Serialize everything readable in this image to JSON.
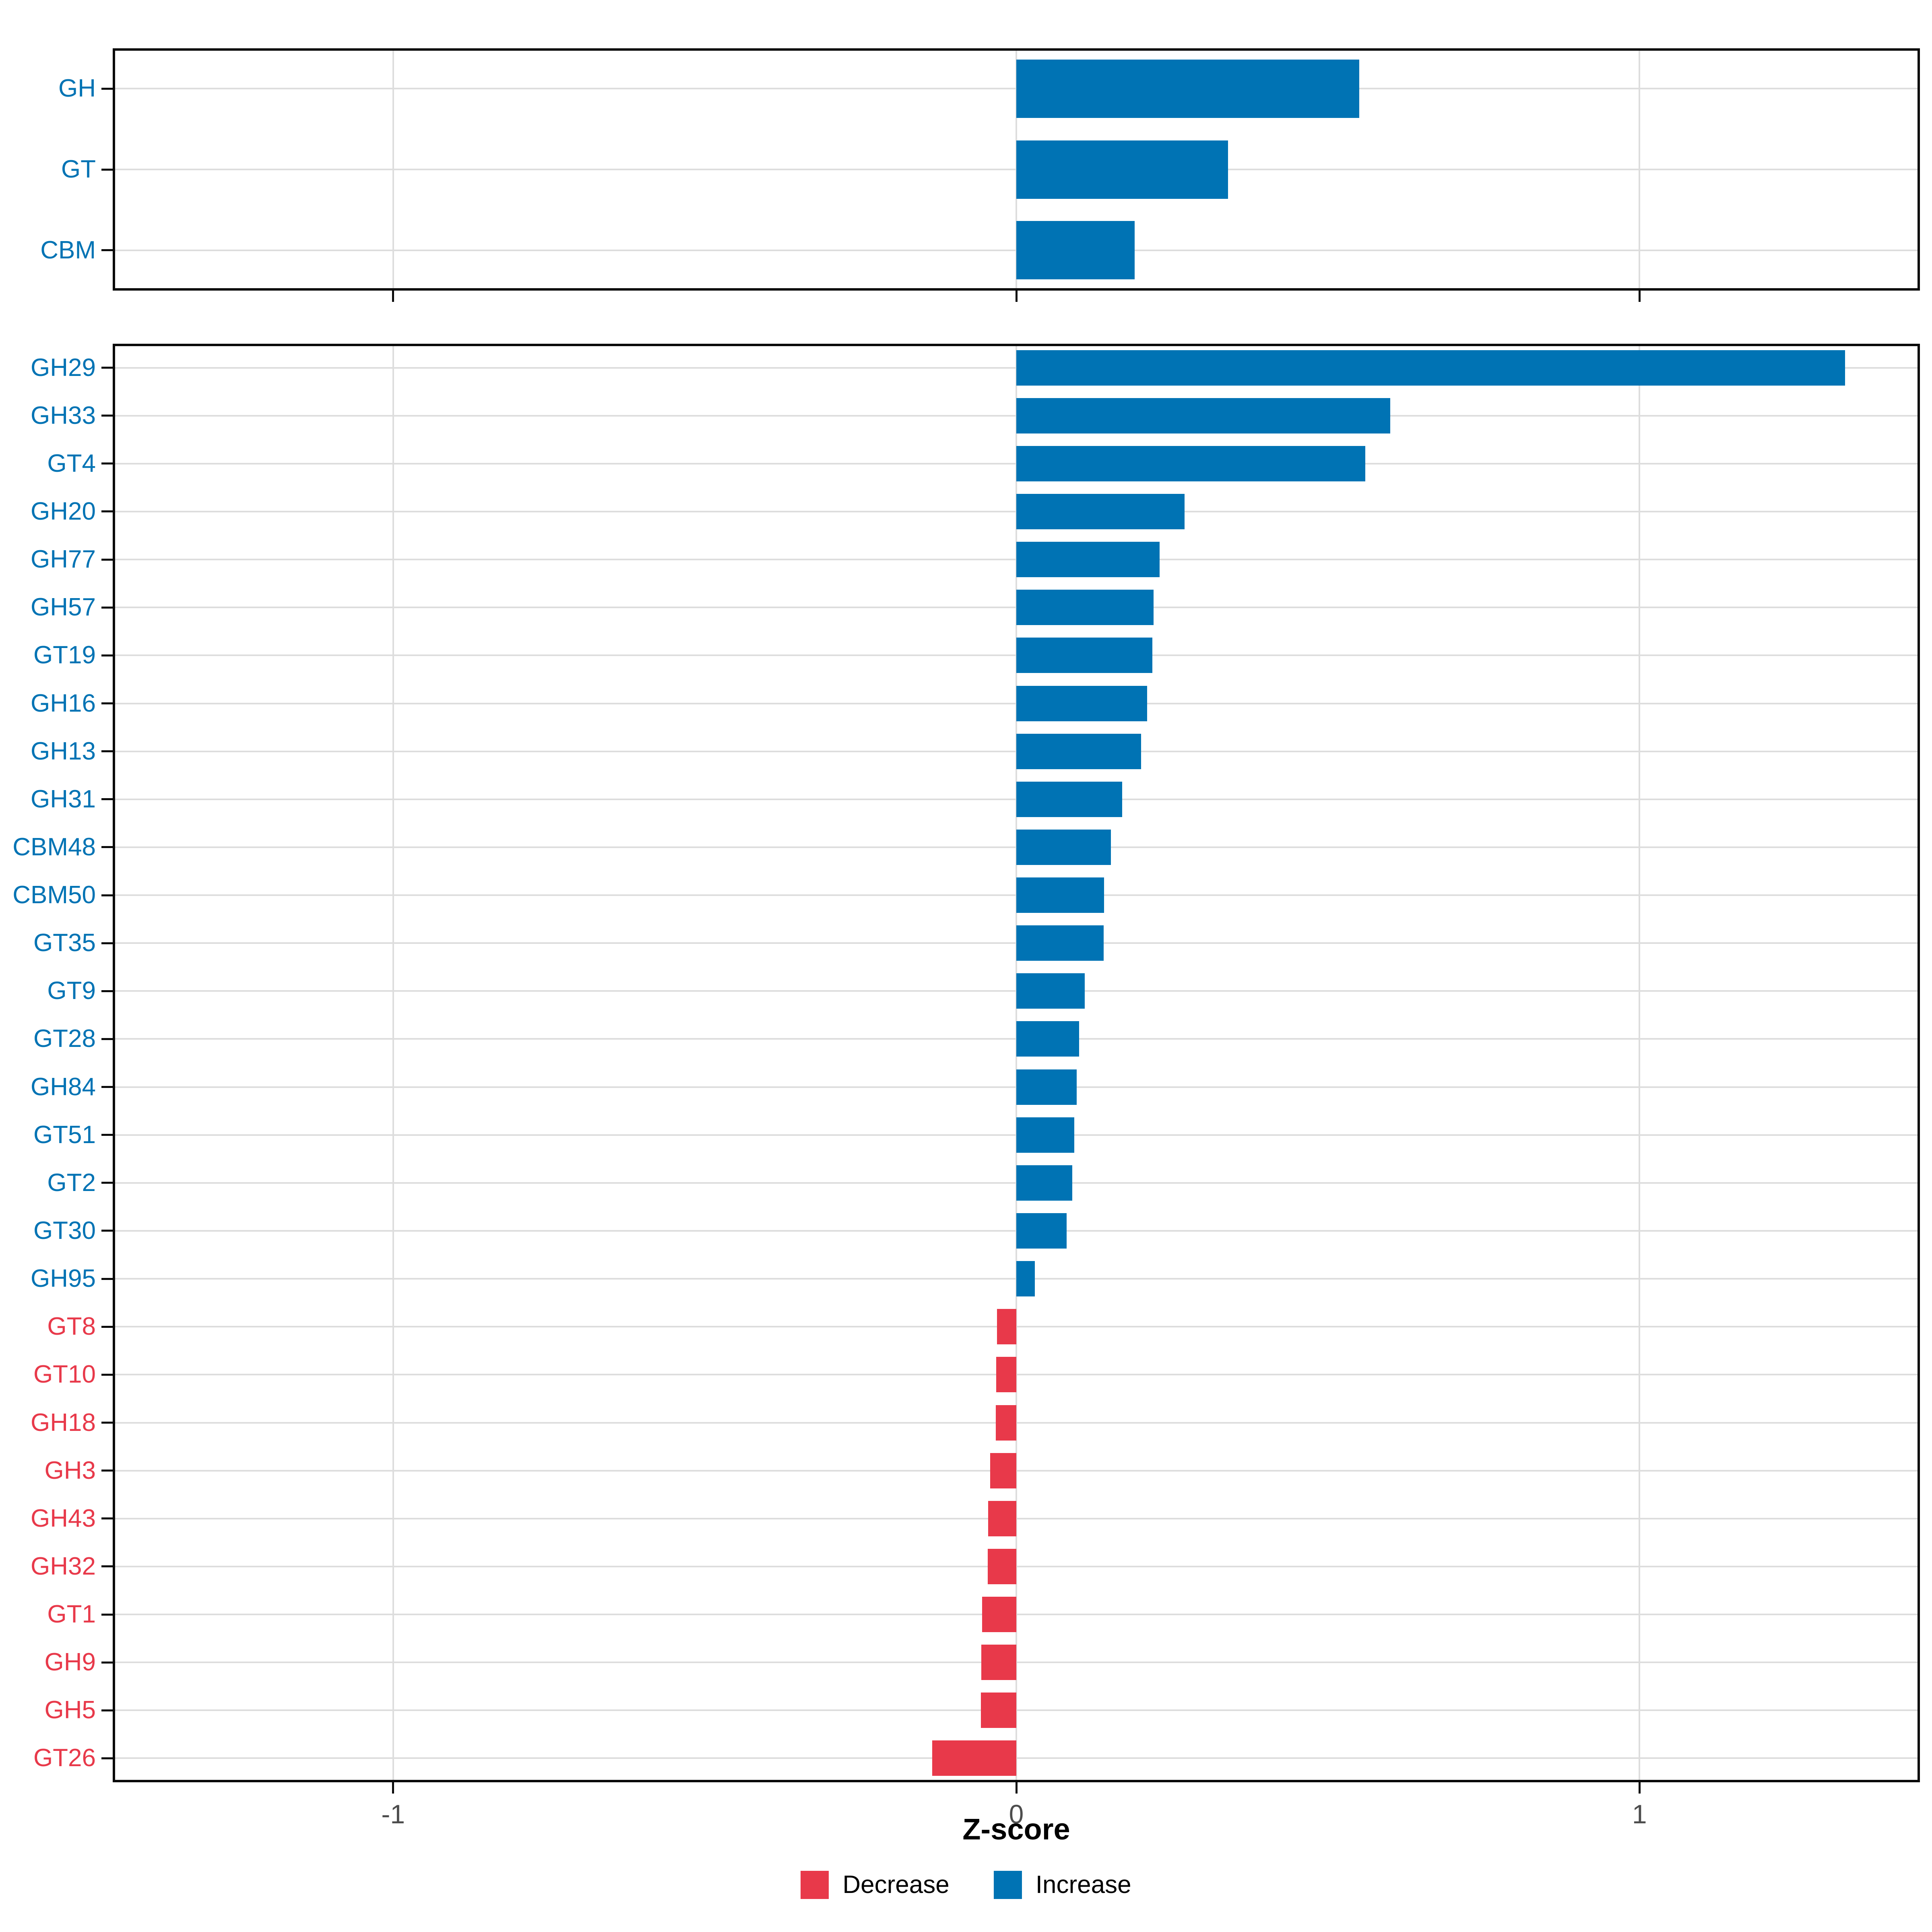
{
  "chart": {
    "xlabel": "Z-score",
    "x_ticks": [
      {
        "v": -1,
        "label": "-1"
      },
      {
        "v": 0,
        "label": "0"
      },
      {
        "v": 1,
        "label": "1"
      }
    ],
    "legend": {
      "decrease_label": "Decrease",
      "increase_label": "Increase"
    }
  },
  "colors": {
    "increase": "#0073B4",
    "decrease": "#E8394A",
    "gridline": "#DDDDDD",
    "panel_border": "#0A0A0A",
    "axis_tick_label": "#4D4D4D",
    "axis_title": "#000000"
  },
  "chart_data": [
    {
      "type": "bar",
      "orientation": "horizontal",
      "panel": "top",
      "categories": [
        "GH",
        "GT",
        "CBM"
      ],
      "values": [
        0.55,
        0.34,
        0.19
      ],
      "xlim": [
        -1.45,
        1.45
      ],
      "grid": true,
      "bar_color_rule": "blue if value >= 0 (Increase), red if value < 0 (Decrease)"
    },
    {
      "type": "bar",
      "orientation": "horizontal",
      "panel": "bottom",
      "categories": [
        "GH29",
        "GH33",
        "GT4",
        "GH20",
        "GH77",
        "GH57",
        "GT19",
        "GH16",
        "GH13",
        "GH31",
        "CBM48",
        "CBM50",
        "GT35",
        "GT9",
        "GT28",
        "GH84",
        "GT51",
        "GT2",
        "GT30",
        "GH95",
        "GT8",
        "GT10",
        "GH18",
        "GH3",
        "GH43",
        "GH32",
        "GT1",
        "GH9",
        "GH5",
        "GT26"
      ],
      "values": [
        1.33,
        0.6,
        0.56,
        0.27,
        0.23,
        0.22,
        0.218,
        0.21,
        0.2,
        0.17,
        0.152,
        0.141,
        0.14,
        0.11,
        0.101,
        0.097,
        0.093,
        0.09,
        0.081,
        0.03,
        -0.031,
        -0.032,
        -0.033,
        -0.042,
        -0.045,
        -0.046,
        -0.055,
        -0.056,
        -0.057,
        -0.135
      ],
      "xlim": [
        -1.45,
        1.45
      ],
      "grid": true,
      "bar_color_rule": "blue if value >= 0 (Increase), red if value < 0 (Decrease)"
    }
  ]
}
